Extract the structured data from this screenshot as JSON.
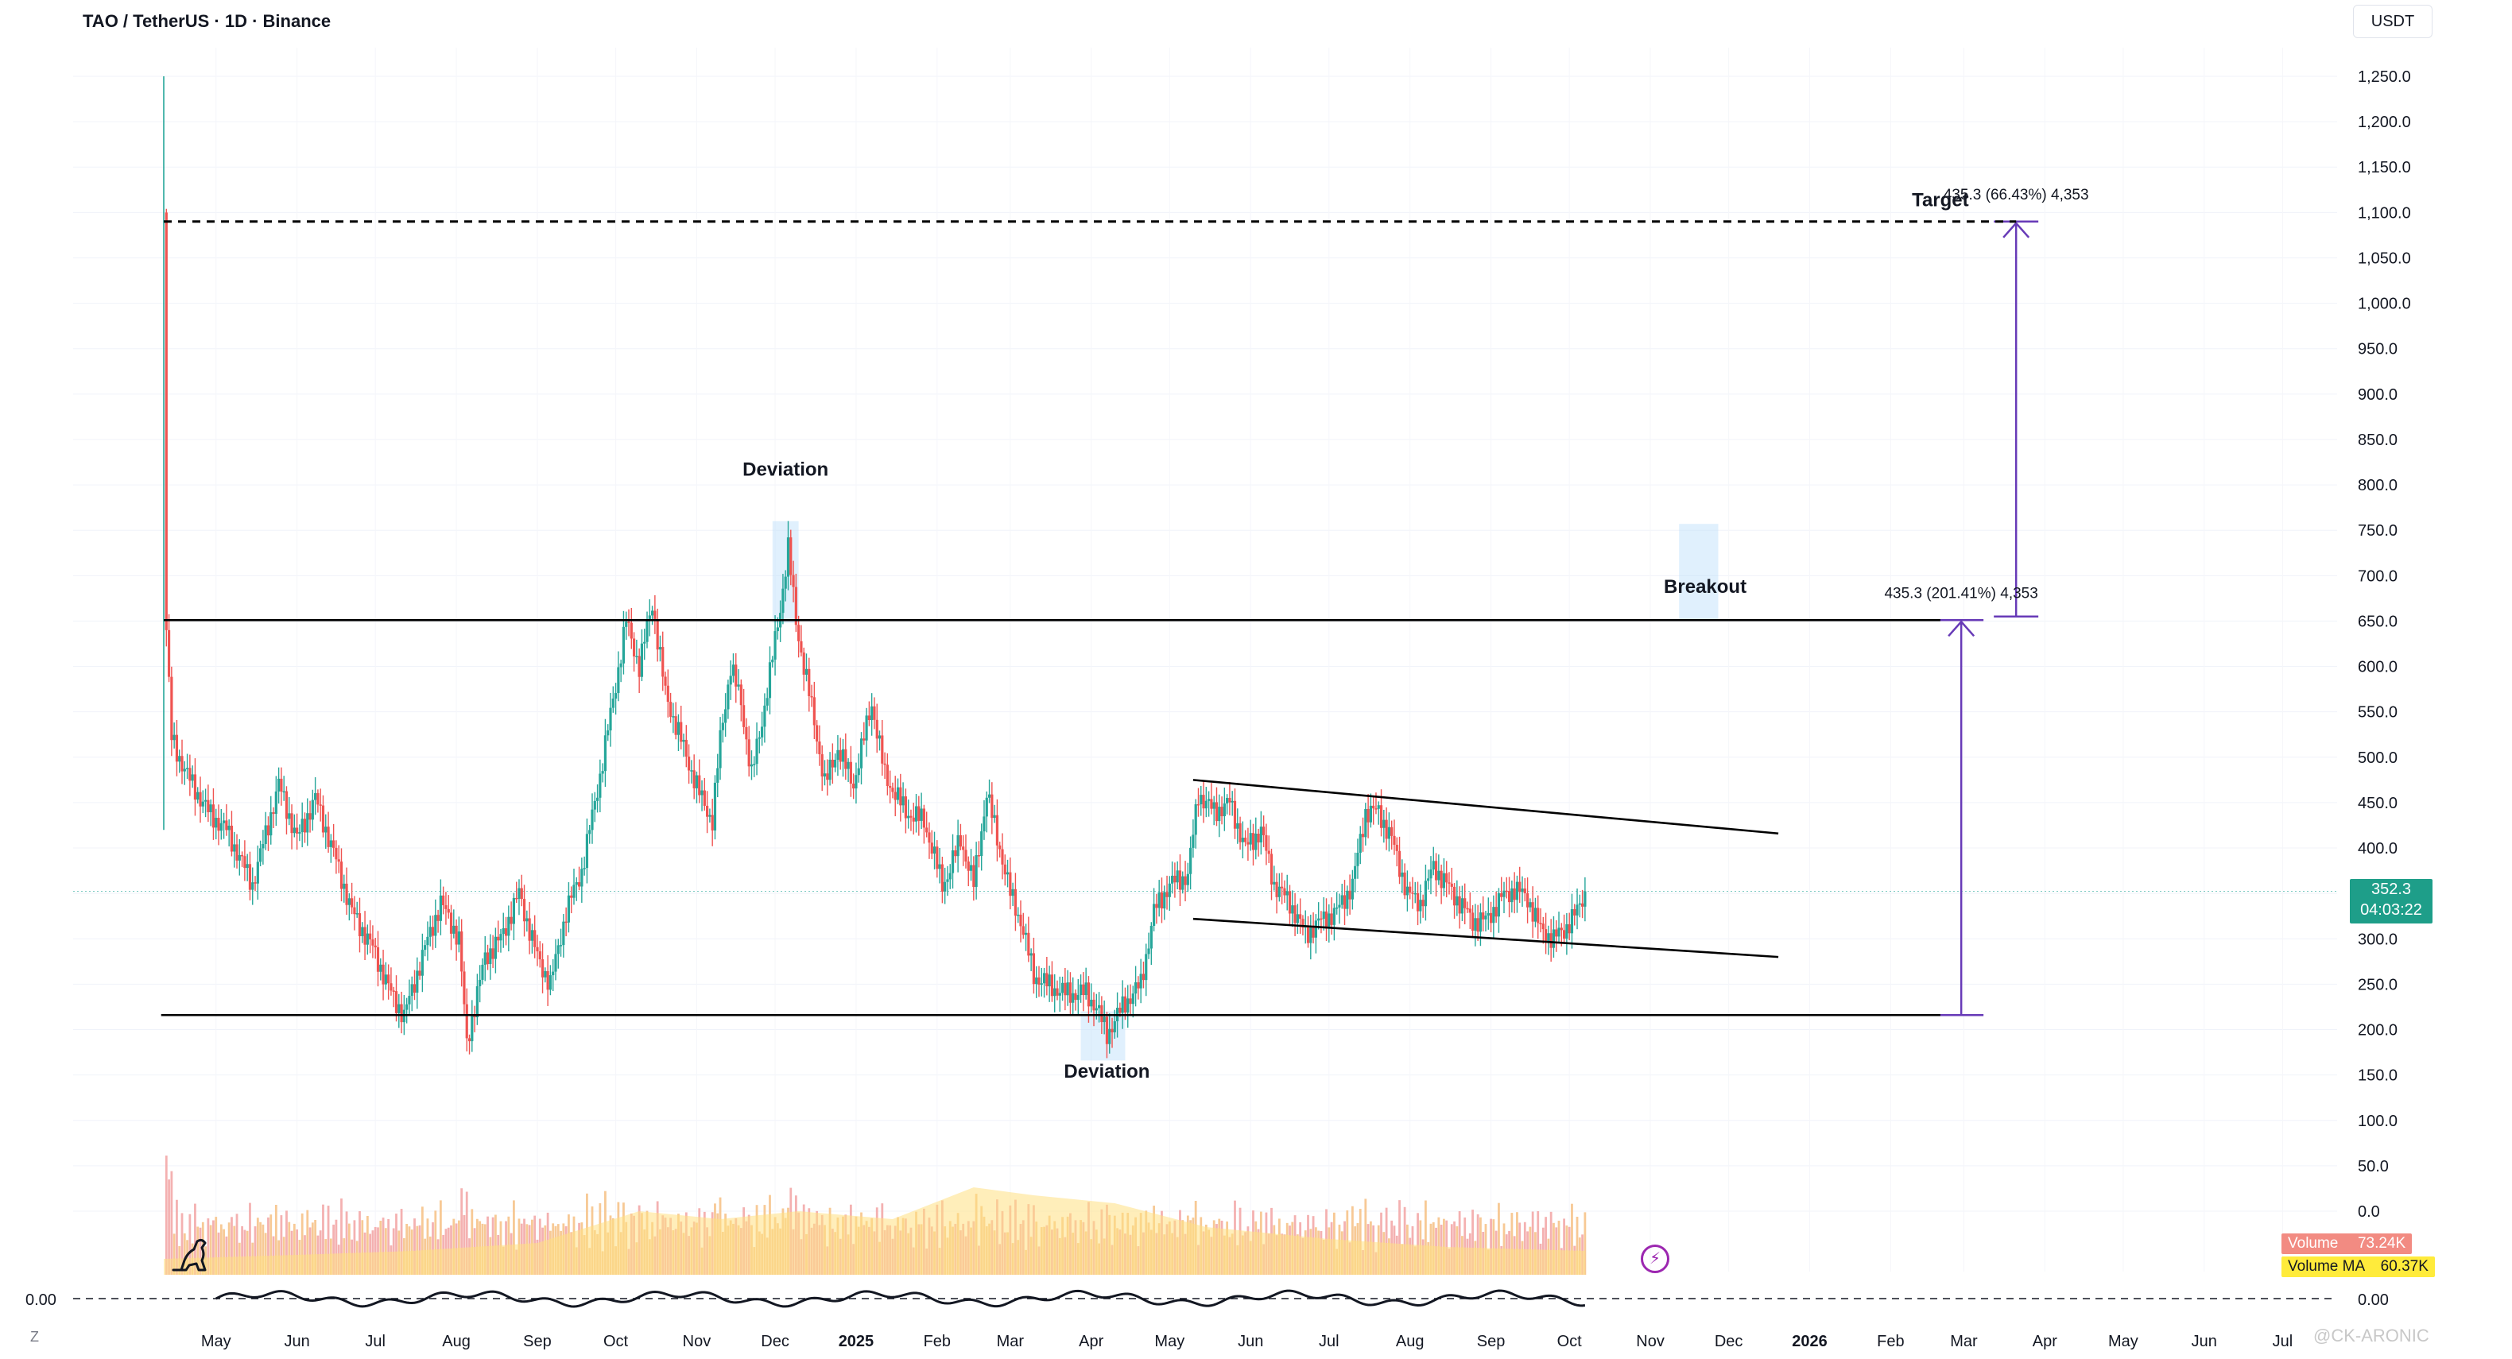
{
  "header": {
    "symbol_title": "TAO / TetherUS · 1D · Binance",
    "currency_button": "USDT"
  },
  "price_tag": {
    "price": "352.3",
    "countdown": "04:03:22"
  },
  "volume_tags": {
    "volume_label": "Volume",
    "volume_value": "73.24K",
    "ma_label": "Volume MA",
    "ma_value": "60.37K"
  },
  "oscillator": {
    "left_value": "0.00",
    "right_value": "0.00"
  },
  "watermark": "@CK-ARONIC",
  "z_label": "Z",
  "icons": {
    "logo": "tradingview-dinosaur-icon",
    "goto_realtime": "lightning-icon"
  },
  "colors": {
    "up": "#26a69a",
    "down": "#ef5350",
    "volume_bar": "#f7a35c",
    "volume_ma": "#ffe082",
    "arrow": "#673ab7",
    "zone": "#bbdefb",
    "line": "#000000"
  },
  "chart_data": {
    "type": "candlestick",
    "symbol": "TAO / TetherUS",
    "interval": "1D",
    "exchange": "Binance",
    "y_ticks": [
      "1,250.0",
      "1,200.0",
      "1,150.0",
      "1,100.0",
      "1,050.0",
      "1,000.0",
      "950.0",
      "900.0",
      "850.0",
      "800.0",
      "750.0",
      "700.0",
      "650.0",
      "600.0",
      "550.0",
      "500.0",
      "450.0",
      "400.0",
      "350.0",
      "300.0",
      "250.0",
      "200.0",
      "150.0",
      "100.0",
      "50.0",
      "0.0"
    ],
    "y_range": [
      0,
      1250
    ],
    "x_ticks": [
      "May",
      "Jun",
      "Jul",
      "Aug",
      "Sep",
      "Oct",
      "Nov",
      "Dec",
      "2025",
      "Feb",
      "Mar",
      "Apr",
      "May",
      "Jun",
      "Jul",
      "Aug",
      "Sep",
      "Oct",
      "Nov",
      "Dec",
      "2026",
      "Feb",
      "Mar",
      "Apr",
      "May",
      "Jun",
      "Jul"
    ],
    "x_range": [
      "2024-04-11",
      "2026-07-31"
    ],
    "close_path": [
      [
        "2024-04-11",
        1100
      ],
      [
        "2024-04-12",
        640
      ],
      [
        "2024-04-14",
        520
      ],
      [
        "2024-04-20",
        480
      ],
      [
        "2024-04-28",
        440
      ],
      [
        "2024-05-05",
        420
      ],
      [
        "2024-05-15",
        360
      ],
      [
        "2024-05-25",
        470
      ],
      [
        "2024-06-01",
        410
      ],
      [
        "2024-06-08",
        455
      ],
      [
        "2024-06-15",
        395
      ],
      [
        "2024-06-22",
        330
      ],
      [
        "2024-06-30",
        290
      ],
      [
        "2024-07-07",
        240
      ],
      [
        "2024-07-12",
        215
      ],
      [
        "2024-07-20",
        290
      ],
      [
        "2024-07-26",
        340
      ],
      [
        "2024-08-02",
        300
      ],
      [
        "2024-08-05",
        185
      ],
      [
        "2024-08-12",
        280
      ],
      [
        "2024-08-18",
        300
      ],
      [
        "2024-08-25",
        350
      ],
      [
        "2024-09-01",
        280
      ],
      [
        "2024-09-06",
        250
      ],
      [
        "2024-09-12",
        330
      ],
      [
        "2024-09-18",
        375
      ],
      [
        "2024-09-25",
        480
      ],
      [
        "2024-10-01",
        580
      ],
      [
        "2024-10-05",
        650
      ],
      [
        "2024-10-10",
        600
      ],
      [
        "2024-10-15",
        670
      ],
      [
        "2024-10-20",
        570
      ],
      [
        "2024-10-27",
        510
      ],
      [
        "2024-11-02",
        460
      ],
      [
        "2024-11-07",
        430
      ],
      [
        "2024-11-10",
        520
      ],
      [
        "2024-11-14",
        600
      ],
      [
        "2024-11-18",
        560
      ],
      [
        "2024-11-22",
        480
      ],
      [
        "2024-11-26",
        540
      ],
      [
        "2024-11-30",
        610
      ],
      [
        "2024-12-03",
        665
      ],
      [
        "2024-12-06",
        730
      ],
      [
        "2024-12-09",
        650
      ],
      [
        "2024-12-12",
        600
      ],
      [
        "2024-12-16",
        540
      ],
      [
        "2024-12-20",
        470
      ],
      [
        "2024-12-25",
        510
      ],
      [
        "2024-12-31",
        470
      ],
      [
        "2025-01-07",
        560
      ],
      [
        "2025-01-12",
        480
      ],
      [
        "2025-01-20",
        440
      ],
      [
        "2025-01-27",
        430
      ],
      [
        "2025-02-03",
        360
      ],
      [
        "2025-02-05",
        370
      ],
      [
        "2025-02-10",
        410
      ],
      [
        "2025-02-15",
        360
      ],
      [
        "2025-02-20",
        460
      ],
      [
        "2025-02-25",
        400
      ],
      [
        "2025-03-01",
        350
      ],
      [
        "2025-03-05",
        320
      ],
      [
        "2025-03-10",
        260
      ],
      [
        "2025-03-15",
        250
      ],
      [
        "2025-03-22",
        240
      ],
      [
        "2025-03-30",
        240
      ],
      [
        "2025-04-03",
        225
      ],
      [
        "2025-04-07",
        195
      ],
      [
        "2025-04-10",
        210
      ],
      [
        "2025-04-14",
        230
      ],
      [
        "2025-04-20",
        250
      ],
      [
        "2025-04-25",
        330
      ],
      [
        "2025-05-01",
        360
      ],
      [
        "2025-05-08",
        370
      ],
      [
        "2025-05-12",
        460
      ],
      [
        "2025-05-18",
        440
      ],
      [
        "2025-05-24",
        450
      ],
      [
        "2025-05-30",
        400
      ],
      [
        "2025-06-05",
        420
      ],
      [
        "2025-06-10",
        360
      ],
      [
        "2025-06-16",
        340
      ],
      [
        "2025-06-22",
        305
      ],
      [
        "2025-06-28",
        320
      ],
      [
        "2025-07-04",
        330
      ],
      [
        "2025-07-10",
        360
      ],
      [
        "2025-07-15",
        440
      ],
      [
        "2025-07-20",
        440
      ],
      [
        "2025-07-25",
        410
      ],
      [
        "2025-07-31",
        350
      ],
      [
        "2025-08-05",
        340
      ],
      [
        "2025-08-10",
        380
      ],
      [
        "2025-08-15",
        360
      ],
      [
        "2025-08-20",
        340
      ],
      [
        "2025-08-25",
        320
      ],
      [
        "2025-08-30",
        320
      ],
      [
        "2025-09-05",
        345
      ],
      [
        "2025-09-10",
        355
      ],
      [
        "2025-09-15",
        345
      ],
      [
        "2025-09-20",
        310
      ],
      [
        "2025-09-25",
        300
      ],
      [
        "2025-09-29",
        310
      ],
      [
        "2025-10-04",
        330
      ],
      [
        "2025-10-07",
        352.3
      ]
    ],
    "volume_ma_path": [
      [
        "2024-04-11",
        20
      ],
      [
        "2024-06-01",
        25
      ],
      [
        "2024-07-15",
        30
      ],
      [
        "2024-09-01",
        40
      ],
      [
        "2024-10-10",
        80
      ],
      [
        "2024-11-10",
        70
      ],
      [
        "2024-12-10",
        80
      ],
      [
        "2025-01-15",
        70
      ],
      [
        "2025-02-15",
        110
      ],
      [
        "2025-03-10",
        100
      ],
      [
        "2025-04-10",
        90
      ],
      [
        "2025-05-15",
        60
      ],
      [
        "2025-07-01",
        45
      ],
      [
        "2025-08-15",
        35
      ],
      [
        "2025-10-07",
        30
      ]
    ],
    "annotations": [
      {
        "type": "text",
        "text": "Deviation",
        "date": "2024-12-05",
        "price": 810
      },
      {
        "type": "text",
        "text": "Deviation",
        "date": "2025-04-07",
        "price": 147
      },
      {
        "type": "text",
        "text": "Breakout",
        "date": "2025-11-22",
        "price": 681
      },
      {
        "type": "text",
        "text": "Target",
        "date": "2026-02-20",
        "price": 1107
      },
      {
        "type": "measure",
        "text": "435.3 (66.43%) 4,353",
        "date": "2026-03-21",
        "price_from": 655,
        "price_to": 1090
      },
      {
        "type": "measure",
        "text": "435.3 (201.41%) 4,353",
        "date": "2026-02-28",
        "price_from": 216,
        "price_to": 651
      },
      {
        "type": "hline",
        "price": 651,
        "from": "2024-04-11",
        "to": "2026-02-20"
      },
      {
        "type": "hline",
        "price": 216,
        "from": "2024-04-10",
        "to": "2026-02-20"
      },
      {
        "type": "hline",
        "price": 1090,
        "style": "dashed",
        "from": "2024-04-11",
        "to": "2026-03-21"
      },
      {
        "type": "trendline",
        "from": [
          "2025-05-10",
          475
        ],
        "to": [
          "2025-12-20",
          416
        ]
      },
      {
        "type": "trendline",
        "from": [
          "2025-05-10",
          322
        ],
        "to": [
          "2025-12-20",
          280
        ]
      },
      {
        "type": "zone",
        "from": [
          "2024-11-30",
          760
        ],
        "to": [
          "2024-12-10",
          648
        ]
      },
      {
        "type": "zone",
        "from": [
          "2025-03-28",
          220
        ],
        "to": [
          "2025-04-14",
          166
        ]
      },
      {
        "type": "zone",
        "from": [
          "2025-11-12",
          757
        ],
        "to": [
          "2025-11-27",
          650
        ]
      }
    ]
  }
}
